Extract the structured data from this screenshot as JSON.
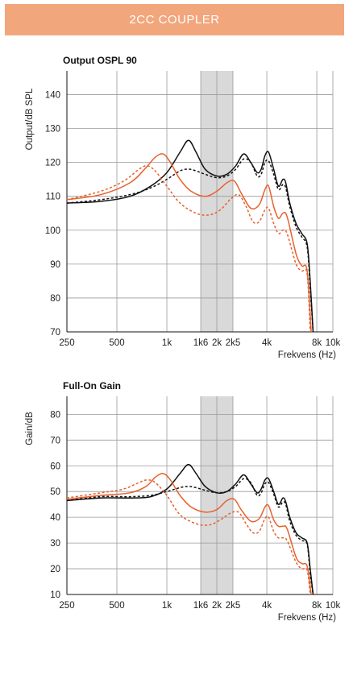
{
  "header": {
    "title": "2CC COUPLER"
  },
  "colors": {
    "banner": "#f2a67c",
    "black": "#111111",
    "orange": "#e8602c",
    "band": "#d9d9d9",
    "grid": "#9a9a9a"
  },
  "chart_data": [
    {
      "type": "line",
      "title": "Output OSPL 90",
      "ylabel": "Output/dB SPL",
      "xlabel": "Frekvens (Hz)",
      "x_scale": "log",
      "xlim": [
        250,
        10000
      ],
      "ylim": [
        70,
        147
      ],
      "yticks": [
        70,
        80,
        90,
        100,
        110,
        120,
        130,
        140
      ],
      "xticks": [
        {
          "value": 250,
          "label": "250"
        },
        {
          "value": 500,
          "label": "500"
        },
        {
          "value": 1000,
          "label": "1k"
        },
        {
          "value": 1600,
          "label": "1k6"
        },
        {
          "value": 2000,
          "label": "2k"
        },
        {
          "value": 2500,
          "label": "2k5"
        },
        {
          "value": 4000,
          "label": "4k"
        },
        {
          "value": 8000,
          "label": "8k"
        },
        {
          "value": 10000,
          "label": "10k"
        }
      ],
      "grid": true,
      "shaded_band": [
        1600,
        2500
      ],
      "series": [
        {
          "color": "black",
          "style": "solid",
          "x": [
            250,
            400,
            600,
            800,
            1000,
            1200,
            1350,
            1500,
            1700,
            2000,
            2300,
            2600,
            2900,
            3200,
            3500,
            3700,
            3900,
            4100,
            4400,
            4700,
            5000,
            5200,
            5500,
            6000,
            6500,
            7000,
            7300,
            7600
          ],
          "y": [
            108,
            108.5,
            110,
            113,
            117,
            123,
            126.5,
            123,
            118,
            116,
            116.5,
            119,
            122.5,
            120,
            117,
            118,
            122,
            123,
            118,
            113,
            115,
            114,
            108,
            102,
            99,
            96,
            85,
            70
          ]
        },
        {
          "color": "black",
          "style": "dashed",
          "x": [
            250,
            400,
            600,
            800,
            1000,
            1200,
            1350,
            1500,
            1700,
            2000,
            2300,
            2600,
            2900,
            3200,
            3500,
            3700,
            3900,
            4100,
            4400,
            4700,
            5000,
            5200,
            5500,
            6000,
            6500,
            7000,
            7300,
            7600
          ],
          "y": [
            108,
            109,
            110.5,
            112.5,
            115,
            117.5,
            118,
            117.5,
            116.5,
            115.5,
            116,
            118,
            121,
            120,
            116,
            116.5,
            120,
            120.5,
            116.5,
            112,
            113.5,
            112.5,
            107,
            101,
            98,
            95,
            83,
            70
          ]
        },
        {
          "color": "orange",
          "style": "solid",
          "x": [
            250,
            400,
            600,
            750,
            850,
            950,
            1050,
            1200,
            1400,
            1700,
            2000,
            2300,
            2550,
            2800,
            3200,
            3600,
            3900,
            4100,
            4400,
            4700,
            5000,
            5300,
            6000,
            6500,
            7000,
            7400
          ],
          "y": [
            109,
            110.5,
            114,
            118.5,
            121.5,
            122.5,
            120,
            115,
            111.5,
            110,
            111.5,
            114,
            114.5,
            111,
            106.5,
            107.5,
            112,
            113,
            107,
            103.5,
            105,
            104,
            93,
            89.5,
            88,
            70
          ]
        },
        {
          "color": "orange",
          "style": "dashed",
          "x": [
            250,
            400,
            550,
            680,
            760,
            850,
            1000,
            1200,
            1500,
            1800,
            2100,
            2400,
            2700,
            3000,
            3300,
            3600,
            3900,
            4100,
            4400,
            4700,
            5000,
            5300,
            6000,
            6500,
            7000,
            7300
          ],
          "y": [
            109,
            111.5,
            114.5,
            118,
            119,
            117.5,
            113,
            108,
            105,
            104.5,
            106,
            109,
            110.5,
            107,
            102.5,
            102.5,
            106,
            106.5,
            102,
            99,
            100,
            99,
            90,
            88,
            87,
            70
          ]
        }
      ]
    },
    {
      "type": "line",
      "title": "Full-On Gain",
      "ylabel": "Gain/dB",
      "xlabel": "Frekvens (Hz)",
      "x_scale": "log",
      "xlim": [
        250,
        10000
      ],
      "ylim": [
        10,
        87
      ],
      "yticks": [
        10,
        20,
        30,
        40,
        50,
        60,
        70,
        80
      ],
      "xticks": [
        {
          "value": 250,
          "label": "250"
        },
        {
          "value": 500,
          "label": "500"
        },
        {
          "value": 1000,
          "label": "1k"
        },
        {
          "value": 1600,
          "label": "1k6"
        },
        {
          "value": 2000,
          "label": "2k"
        },
        {
          "value": 2500,
          "label": "2k5"
        },
        {
          "value": 4000,
          "label": "4k"
        },
        {
          "value": 8000,
          "label": "8k"
        },
        {
          "value": 10000,
          "label": "10k"
        }
      ],
      "grid": true,
      "shaded_band": [
        1600,
        2500
      ],
      "series": [
        {
          "color": "black",
          "style": "solid",
          "x": [
            250,
            400,
            600,
            800,
            1000,
            1200,
            1350,
            1500,
            1700,
            2000,
            2300,
            2600,
            2900,
            3200,
            3500,
            3700,
            3900,
            4100,
            4400,
            4700,
            5000,
            5200,
            5500,
            6000,
            6500,
            7000,
            7300,
            7600
          ],
          "y": [
            46.5,
            47.5,
            47.5,
            48,
            51,
            57,
            60.5,
            57,
            52,
            49.5,
            50,
            53,
            56.5,
            53,
            49.5,
            51,
            54.5,
            55,
            50,
            45,
            47.5,
            46,
            40,
            34,
            32,
            30,
            20,
            10
          ]
        },
        {
          "color": "black",
          "style": "dashed",
          "x": [
            250,
            400,
            600,
            800,
            1000,
            1200,
            1350,
            1500,
            1700,
            2000,
            2300,
            2600,
            2900,
            3200,
            3500,
            3700,
            3900,
            4100,
            4400,
            4700,
            5000,
            5200,
            5500,
            6000,
            6500,
            7000,
            7300,
            7600
          ],
          "y": [
            46.5,
            48,
            48,
            48.5,
            50,
            51.5,
            52,
            51.5,
            50.5,
            49.5,
            50,
            52,
            55,
            53.5,
            48.5,
            49.5,
            53,
            53.5,
            49,
            44,
            46,
            45,
            38.5,
            33,
            31,
            29.5,
            18,
            10
          ]
        },
        {
          "color": "orange",
          "style": "solid",
          "x": [
            250,
            400,
            600,
            750,
            850,
            950,
            1050,
            1200,
            1400,
            1700,
            2000,
            2300,
            2550,
            2800,
            3200,
            3600,
            3900,
            4100,
            4400,
            4700,
            5000,
            5300,
            6000,
            6500,
            7000,
            7400
          ],
          "y": [
            47,
            48.5,
            49.5,
            52,
            55.5,
            57,
            54.5,
            48.5,
            44,
            42,
            43,
            46.5,
            47,
            43,
            38.5,
            39.5,
            44,
            44.5,
            39,
            36.5,
            36.5,
            35.5,
            24.5,
            22,
            21,
            10
          ]
        },
        {
          "color": "orange",
          "style": "dashed",
          "x": [
            250,
            400,
            550,
            680,
            760,
            850,
            1000,
            1200,
            1500,
            1800,
            2100,
            2400,
            2700,
            3000,
            3300,
            3600,
            3900,
            4100,
            4400,
            4700,
            5000,
            5300,
            6000,
            6500,
            7000,
            7300
          ],
          "y": [
            47.5,
            49.5,
            51,
            53.5,
            54.5,
            53.5,
            48.5,
            41,
            37.5,
            37,
            39,
            41.5,
            42,
            37.5,
            34,
            34.5,
            39.5,
            40,
            34.5,
            32,
            32,
            31,
            22.5,
            20,
            19.5,
            10
          ]
        }
      ]
    }
  ]
}
